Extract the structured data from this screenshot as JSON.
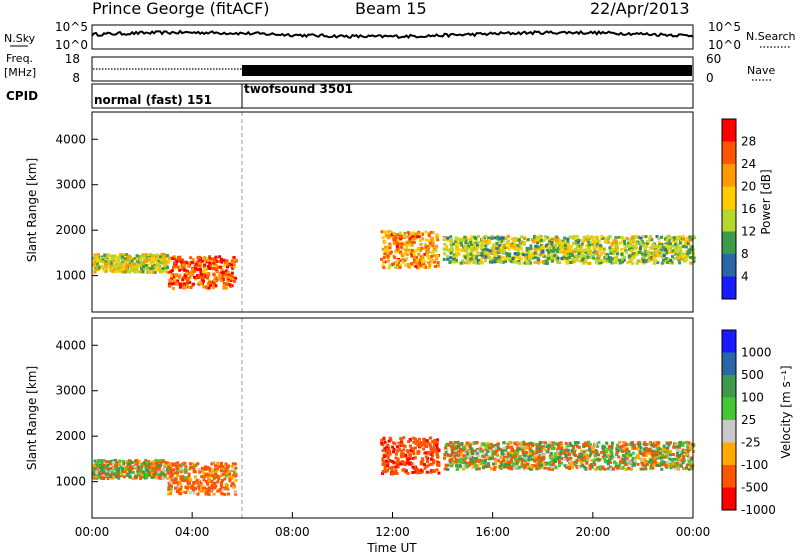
{
  "header": {
    "station": "Prince George (fitACF)",
    "beam": "Beam 15",
    "date": "22/Apr/2013"
  },
  "side_labels": {
    "nsky": "N.Sky",
    "freq_line1": "Freq.",
    "freq_line2": "[MHz]",
    "cpid": "CPID",
    "nsearch": "N.Search",
    "nave": "Nave"
  },
  "noise_panel": {
    "left_ticks": [
      "10^5",
      "10^0"
    ],
    "right_ticks": [
      "10^5",
      "10^0"
    ]
  },
  "freq_panel": {
    "left_ticks": [
      "18",
      "8"
    ],
    "right_ticks": [
      "60",
      "0"
    ]
  },
  "cpid_panel": {
    "modes": [
      {
        "label": "normal (fast) 151",
        "start_hour": 0,
        "end_hour": 6
      },
      {
        "label": "twofsound 3501",
        "start_hour": 6,
        "end_hour": 24
      }
    ]
  },
  "x_axis": {
    "label": "Time UT",
    "ticks": [
      "00:00",
      "04:00",
      "08:00",
      "12:00",
      "16:00",
      "20:00",
      "00:00"
    ]
  },
  "power_panel": {
    "ylabel": "Slant Range [km]",
    "yticks": [
      "4000",
      "3000",
      "2000",
      "1000"
    ],
    "colorbar_label": "Power [dB]",
    "colorbar_ticks": [
      "28",
      "24",
      "20",
      "16",
      "12",
      "8",
      "4"
    ],
    "colors": [
      "#ff0000",
      "#ff5500",
      "#ff9900",
      "#ffcc00",
      "#b5d82a",
      "#3c9a4a",
      "#2b66a8",
      "#1a1aff"
    ]
  },
  "velocity_panel": {
    "ylabel": "Slant Range [km]",
    "yticks": [
      "4000",
      "3000",
      "2000",
      "1000"
    ],
    "colorbar_label": "Velocity [m s⁻¹]",
    "colorbar_ticks": [
      "1000",
      "500",
      "100",
      "25",
      "-25",
      "-100",
      "-500",
      "-1000"
    ],
    "colors": [
      "#1a1aff",
      "#2b66a8",
      "#3c9a4a",
      "#44c833",
      "#c8c8c8",
      "#ffaa00",
      "#ff5500",
      "#ff0000"
    ]
  },
  "chart_data": {
    "type": "heatmap",
    "title": "Prince George (fitACF)",
    "xlabel": "Time UT",
    "ylabel": "Slant Range [km]",
    "x_range_hours": [
      0,
      24
    ],
    "y_range_km": [
      200,
      4600
    ],
    "power_range_db": [
      0,
      32
    ],
    "velocity_range_ms": [
      -1200,
      1200
    ],
    "scatter_regions": [
      {
        "name": "early_band",
        "t_start": 0.0,
        "t_end": 3.0,
        "range_center_km": 1300,
        "range_width_km": 400,
        "power_db": 18,
        "velocity_ms": 0
      },
      {
        "name": "morning_enhancement",
        "t_start": 3.0,
        "t_end": 5.7,
        "range_center_km": 1100,
        "range_width_km": 700,
        "power_db": 28,
        "velocity_ms": -200
      },
      {
        "name": "noon_patch",
        "t_start": 11.5,
        "t_end": 13.8,
        "range_center_km": 1600,
        "range_width_km": 800,
        "power_db": 24,
        "velocity_ms": -400
      },
      {
        "name": "afternoon_band",
        "t_start": 14.0,
        "t_end": 24.0,
        "range_center_km": 1600,
        "range_width_km": 600,
        "power_db": 16,
        "velocity_ms": 0
      }
    ]
  }
}
